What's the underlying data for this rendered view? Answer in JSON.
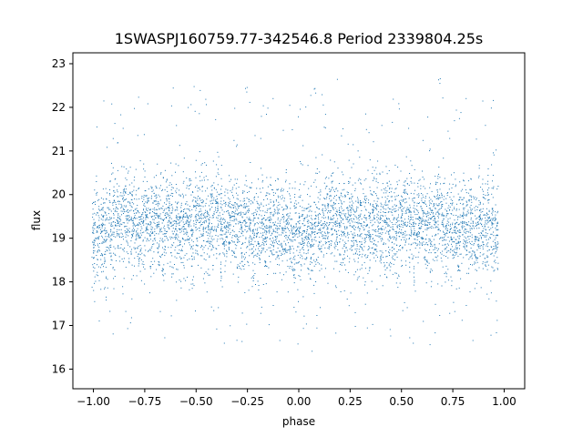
{
  "chart_data": {
    "type": "scatter",
    "title": "1SWASPJ160759.77-342546.8 Period 2339804.25s",
    "xlabel": "phase",
    "ylabel": "flux",
    "xlim": [
      -1.1,
      1.1
    ],
    "ylim": [
      15.55,
      23.25
    ],
    "x_ticks": [
      -1.0,
      -0.75,
      -0.5,
      -0.25,
      0.0,
      0.25,
      0.5,
      0.75,
      1.0
    ],
    "x_tick_labels": [
      "−1.00",
      "−0.75",
      "−0.50",
      "−0.25",
      "0.00",
      "0.25",
      "0.50",
      "0.75",
      "1.00"
    ],
    "y_ticks": [
      16,
      17,
      18,
      19,
      20,
      21,
      22,
      23
    ],
    "y_tick_labels": [
      "16",
      "17",
      "18",
      "19",
      "20",
      "21",
      "22",
      "23"
    ],
    "grid": false,
    "marker_color": "#1f77b4",
    "series": [
      {
        "x": [
          -1.0,
          -0.98,
          -0.96,
          -0.94,
          -0.92,
          -0.9,
          -0.88,
          -0.86,
          -0.84,
          -0.82,
          -0.8,
          -0.78,
          -0.76,
          -0.74,
          -0.72,
          -0.7,
          -0.68,
          -0.66,
          -0.64,
          -0.62,
          -0.6,
          -0.58,
          -0.56,
          -0.54,
          -0.52,
          -0.5,
          -0.48,
          -0.46,
          -0.44,
          -0.42,
          -0.4,
          -0.38,
          -0.36,
          -0.34,
          -0.32,
          -0.3,
          -0.28,
          -0.26,
          -0.24,
          -0.22,
          -0.2,
          -0.18,
          -0.16,
          -0.14,
          -0.12,
          -0.1,
          -0.08,
          -0.06,
          -0.04,
          -0.02,
          0.0,
          0.02,
          0.04,
          0.06,
          0.08,
          0.1,
          0.12,
          0.14,
          0.16,
          0.18,
          0.2,
          0.22,
          0.24,
          0.26,
          0.28,
          0.3,
          0.32,
          0.34,
          0.36,
          0.38,
          0.4,
          0.42,
          0.44,
          0.46,
          0.48,
          0.5,
          0.52,
          0.54,
          0.56,
          0.58,
          0.6,
          0.62,
          0.64,
          0.66,
          0.68,
          0.7,
          0.72,
          0.74,
          0.76,
          0.78,
          0.8,
          0.82,
          0.84,
          0.86,
          0.88,
          0.9,
          0.92,
          0.94,
          0.96
        ],
        "y_center": [
          19.0,
          19.2,
          19.1,
          19.0,
          19.2,
          19.3,
          19.4,
          19.3,
          19.5,
          19.4,
          19.3,
          19.2,
          19.4,
          19.3,
          19.2,
          19.4,
          19.3,
          19.2,
          19.4,
          19.3,
          19.2,
          19.3,
          19.4,
          19.3,
          19.2,
          19.4,
          19.5,
          19.3,
          19.2,
          19.4,
          19.5,
          19.3,
          19.2,
          19.4,
          19.5,
          19.3,
          19.2,
          19.3,
          19.2,
          19.1,
          19.2,
          19.3,
          19.2,
          19.1,
          19.3,
          19.2,
          19.3,
          19.2,
          19.1,
          19.0,
          19.0,
          19.2,
          19.1,
          19.0,
          19.2,
          19.3,
          19.4,
          19.3,
          19.5,
          19.4,
          19.3,
          19.2,
          19.4,
          19.3,
          19.2,
          19.4,
          19.3,
          19.2,
          19.4,
          19.3,
          19.2,
          19.3,
          19.4,
          19.3,
          19.2,
          19.4,
          19.5,
          19.3,
          19.2,
          19.4,
          19.5,
          19.3,
          19.2,
          19.4,
          19.5,
          19.3,
          19.2,
          19.3,
          19.2,
          19.1,
          19.2,
          19.3,
          19.2,
          19.1,
          19.3,
          19.2,
          19.3,
          19.2,
          19.1
        ]
      }
    ]
  }
}
